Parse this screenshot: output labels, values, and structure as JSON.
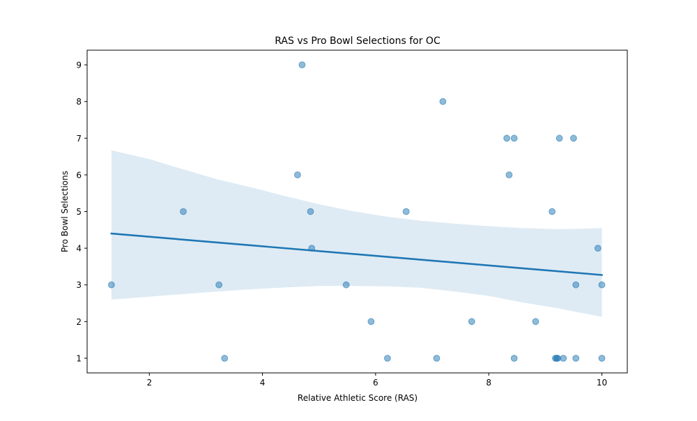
{
  "chart_data": {
    "type": "scatter",
    "title": "RAS vs Pro Bowl Selections for OC",
    "xlabel": "Relative Athletic Score (RAS)",
    "ylabel": "Pro Bowl Selections",
    "xlim": [
      0.9,
      10.45
    ],
    "ylim": [
      0.6,
      9.4
    ],
    "x_ticks": [
      2,
      4,
      6,
      8,
      10
    ],
    "y_ticks": [
      1,
      2,
      3,
      4,
      5,
      6,
      7,
      8,
      9
    ],
    "grid": false,
    "colors": {
      "points": "#1f77b4",
      "regression_line": "#1f77b4",
      "confidence_band": "#1f77b4"
    },
    "points": [
      {
        "x": 1.33,
        "y": 3
      },
      {
        "x": 2.6,
        "y": 5
      },
      {
        "x": 3.23,
        "y": 3
      },
      {
        "x": 3.33,
        "y": 1
      },
      {
        "x": 4.62,
        "y": 6
      },
      {
        "x": 4.7,
        "y": 9
      },
      {
        "x": 4.85,
        "y": 5
      },
      {
        "x": 4.87,
        "y": 4
      },
      {
        "x": 5.48,
        "y": 3
      },
      {
        "x": 5.92,
        "y": 2
      },
      {
        "x": 6.21,
        "y": 1
      },
      {
        "x": 6.54,
        "y": 5
      },
      {
        "x": 7.08,
        "y": 1
      },
      {
        "x": 7.19,
        "y": 8
      },
      {
        "x": 7.7,
        "y": 2
      },
      {
        "x": 8.32,
        "y": 7
      },
      {
        "x": 8.36,
        "y": 6
      },
      {
        "x": 8.45,
        "y": 7
      },
      {
        "x": 8.45,
        "y": 1
      },
      {
        "x": 8.83,
        "y": 2
      },
      {
        "x": 9.12,
        "y": 5
      },
      {
        "x": 9.18,
        "y": 1
      },
      {
        "x": 9.2,
        "y": 1
      },
      {
        "x": 9.22,
        "y": 1
      },
      {
        "x": 9.25,
        "y": 7
      },
      {
        "x": 9.32,
        "y": 1
      },
      {
        "x": 9.5,
        "y": 7
      },
      {
        "x": 9.54,
        "y": 3
      },
      {
        "x": 9.54,
        "y": 1
      },
      {
        "x": 9.93,
        "y": 4
      },
      {
        "x": 10.0,
        "y": 3
      },
      {
        "x": 10.0,
        "y": 1
      }
    ],
    "regression_line": {
      "x": [
        1.33,
        10.0
      ],
      "y": [
        4.4,
        3.27
      ]
    },
    "confidence_band": {
      "x": [
        1.33,
        2.0,
        2.6,
        3.2,
        3.8,
        4.4,
        5.0,
        5.6,
        6.2,
        6.8,
        7.4,
        8.0,
        8.6,
        9.2,
        9.6,
        10.0
      ],
      "upper": [
        6.67,
        6.43,
        6.15,
        5.88,
        5.66,
        5.42,
        5.2,
        5.01,
        4.86,
        4.75,
        4.67,
        4.6,
        4.55,
        4.52,
        4.53,
        4.55
      ],
      "lower": [
        2.6,
        2.68,
        2.75,
        2.82,
        2.88,
        2.93,
        2.97,
        2.97,
        2.96,
        2.92,
        2.82,
        2.7,
        2.52,
        2.37,
        2.25,
        2.13
      ]
    }
  }
}
